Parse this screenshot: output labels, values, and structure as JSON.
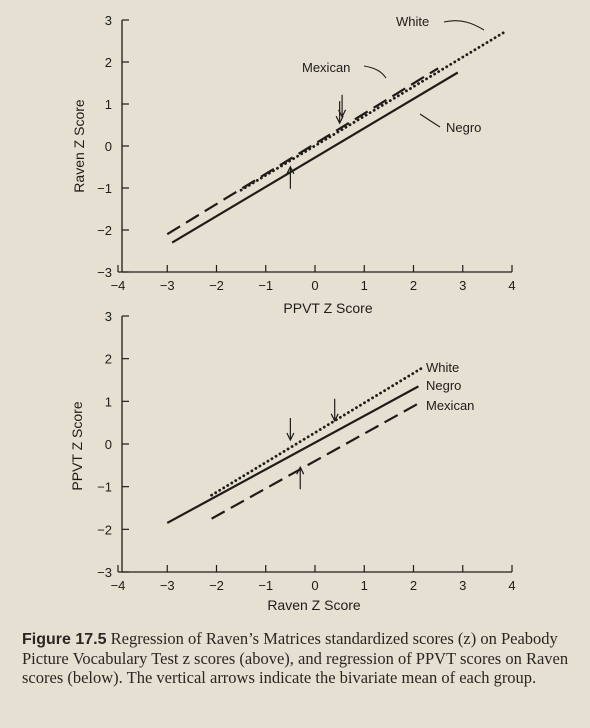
{
  "chart_data": [
    {
      "type": "line",
      "xlabel": "PPVT Z Score",
      "ylabel": "Raven Z Score",
      "xlim": [
        -4,
        4
      ],
      "ylim": [
        -3,
        3
      ],
      "xticks": [
        -4,
        -3,
        -2,
        -1,
        0,
        1,
        2,
        3,
        4
      ],
      "yticks": [
        -3,
        -2,
        -1,
        0,
        1,
        2,
        3
      ],
      "series": [
        {
          "name": "White",
          "style": "dotted",
          "x": [
            -1.5,
            3.9
          ],
          "y": [
            -1.05,
            2.75
          ],
          "mean": [
            0.5,
            0.45
          ]
        },
        {
          "name": "Mexican",
          "style": "dashed",
          "x": [
            -3.0,
            2.5
          ],
          "y": [
            -2.1,
            1.85
          ],
          "mean": [
            0.55,
            0.6
          ]
        },
        {
          "name": "Negro",
          "style": "solid",
          "x": [
            -2.9,
            2.9
          ],
          "y": [
            -2.3,
            1.75
          ],
          "mean": [
            -0.5,
            -0.4
          ]
        }
      ]
    },
    {
      "type": "line",
      "xlabel": "Raven Z Score",
      "ylabel": "PPVT Z Score",
      "xlim": [
        -4,
        4
      ],
      "ylim": [
        -3,
        3
      ],
      "xticks": [
        -4,
        -3,
        -2,
        -1,
        0,
        1,
        2,
        3,
        4
      ],
      "yticks": [
        -3,
        -2,
        -1,
        0,
        1,
        2,
        3
      ],
      "series": [
        {
          "name": "White",
          "style": "dotted",
          "x": [
            -2.1,
            2.2
          ],
          "y": [
            -1.2,
            1.8
          ],
          "mean": [
            0.4,
            0.45
          ]
        },
        {
          "name": "Negro",
          "style": "solid",
          "x": [
            -3.0,
            2.1
          ],
          "y": [
            -1.85,
            1.35
          ],
          "mean": [
            -0.5,
            0.0
          ]
        },
        {
          "name": "Mexican",
          "style": "dashed",
          "x": [
            -2.1,
            2.1
          ],
          "y": [
            -1.75,
            0.95
          ],
          "mean": [
            -0.3,
            -0.45
          ]
        }
      ]
    }
  ],
  "caption": {
    "label": "Figure 17.5",
    "text": "Regression of Raven’s Matrices standardized scores (z) on Peabody Picture Vocabulary Test z scores (above), and regression of PPVT scores on Raven scores (below). The vertical arrows indicate the bivariate mean of each group."
  },
  "colors": {
    "ink": "#1e1c19",
    "paper": "#e6e0d2"
  }
}
